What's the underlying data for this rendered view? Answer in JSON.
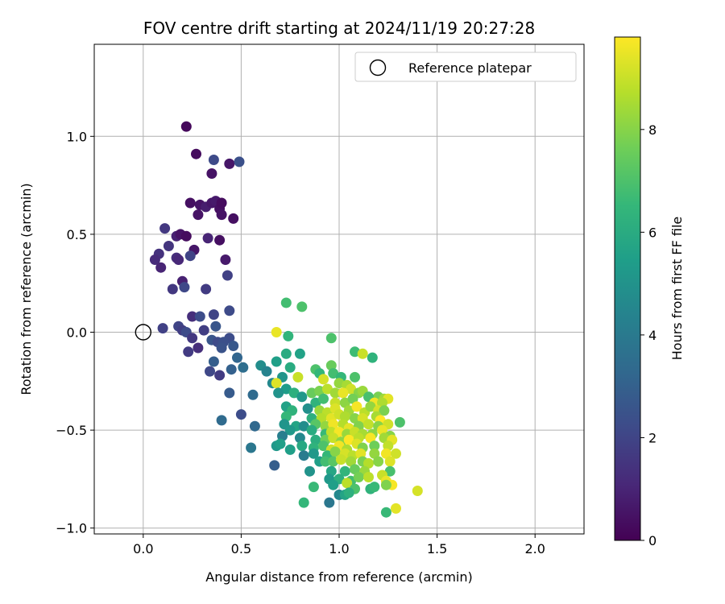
{
  "chart_data": {
    "type": "scatter",
    "title": "FOV centre drift starting at 2024/11/19 20:27:28",
    "xlabel": "Angular distance from reference (arcmin)",
    "ylabel": "Rotation from reference (arcmin)",
    "xlim": [
      -0.25,
      2.25
    ],
    "ylim": [
      -1.03,
      1.47
    ],
    "xticks": [
      0.0,
      0.5,
      1.0,
      1.5,
      2.0
    ],
    "xtick_labels": [
      "0.0",
      "0.5",
      "1.0",
      "1.5",
      "2.0"
    ],
    "yticks": [
      -1.0,
      -0.5,
      0.0,
      0.5,
      1.0
    ],
    "ytick_labels": [
      "−1.0",
      "−0.5",
      "0.0",
      "0.5",
      "1.0"
    ],
    "grid": true,
    "legend": {
      "location": "top-right",
      "label": "Reference platepar"
    },
    "reference_point": {
      "x": 0.0,
      "y": 0.0,
      "marker": "open-circle"
    },
    "colorbar": {
      "label": "Hours from first FF file",
      "colormap": "viridis",
      "range": [
        0,
        9.8
      ],
      "ticks": [
        0,
        2,
        4,
        6,
        8
      ],
      "tick_labels": [
        "0",
        "2",
        "4",
        "6",
        "8"
      ]
    },
    "colormap_stops": [
      "#440154",
      "#482878",
      "#3e4a89",
      "#31688e",
      "#26828e",
      "#1f9e89",
      "#35b779",
      "#6ece58",
      "#b5de2b",
      "#fde725"
    ],
    "series": [
      {
        "points": [
          [
            0.22,
            1.05,
            0.2
          ],
          [
            0.27,
            0.91,
            0.3
          ],
          [
            0.35,
            0.81,
            0.5
          ],
          [
            0.44,
            0.86,
            0.6
          ],
          [
            0.36,
            0.88,
            2.2
          ],
          [
            0.49,
            0.87,
            2.4
          ],
          [
            0.24,
            0.66,
            0.4
          ],
          [
            0.29,
            0.65,
            0.5
          ],
          [
            0.32,
            0.64,
            0.8
          ],
          [
            0.35,
            0.66,
            0.6
          ],
          [
            0.37,
            0.67,
            0.7
          ],
          [
            0.39,
            0.63,
            0.4
          ],
          [
            0.4,
            0.66,
            0.3
          ],
          [
            0.28,
            0.6,
            0.5
          ],
          [
            0.4,
            0.6,
            0.5
          ],
          [
            0.46,
            0.58,
            0.4
          ],
          [
            0.11,
            0.53,
            1.6
          ],
          [
            0.17,
            0.49,
            0.9
          ],
          [
            0.19,
            0.5,
            0.5
          ],
          [
            0.22,
            0.49,
            0.3
          ],
          [
            0.33,
            0.48,
            1.0
          ],
          [
            0.39,
            0.47,
            0.4
          ],
          [
            0.13,
            0.44,
            1.5
          ],
          [
            0.26,
            0.42,
            0.6
          ],
          [
            0.08,
            0.4,
            1.4
          ],
          [
            0.06,
            0.37,
            1.2
          ],
          [
            0.17,
            0.38,
            1.3
          ],
          [
            0.18,
            0.37,
            1.1
          ],
          [
            0.24,
            0.39,
            2.0
          ],
          [
            0.42,
            0.37,
            0.7
          ],
          [
            0.09,
            0.33,
            1.0
          ],
          [
            0.43,
            0.29,
            1.9
          ],
          [
            0.2,
            0.26,
            0.9
          ],
          [
            0.15,
            0.22,
            1.6
          ],
          [
            0.21,
            0.23,
            2.1
          ],
          [
            0.32,
            0.22,
            1.7
          ],
          [
            0.73,
            0.15,
            6.8
          ],
          [
            0.81,
            0.13,
            7.0
          ],
          [
            0.44,
            0.11,
            2.2
          ],
          [
            0.36,
            0.09,
            2.0
          ],
          [
            0.25,
            0.08,
            1.3
          ],
          [
            0.29,
            0.08,
            2.3
          ],
          [
            0.18,
            0.03,
            2.0
          ],
          [
            0.37,
            0.03,
            2.6
          ],
          [
            0.1,
            0.02,
            1.9
          ],
          [
            0.2,
            0.01,
            1.8
          ],
          [
            0.22,
            0.0,
            2.2
          ],
          [
            0.31,
            0.01,
            1.8
          ],
          [
            0.68,
            0.0,
            9.5
          ],
          [
            0.74,
            -0.02,
            6.4
          ],
          [
            0.96,
            -0.03,
            7.0
          ],
          [
            0.44,
            -0.03,
            2.3
          ],
          [
            0.25,
            -0.03,
            1.6
          ],
          [
            0.35,
            -0.04,
            2.6
          ],
          [
            0.38,
            -0.05,
            2.2
          ],
          [
            0.41,
            -0.05,
            2.4
          ],
          [
            0.46,
            -0.07,
            2.7
          ],
          [
            0.28,
            -0.08,
            1.3
          ],
          [
            0.4,
            -0.08,
            2.5
          ],
          [
            0.23,
            -0.1,
            1.7
          ],
          [
            1.08,
            -0.1,
            6.7
          ],
          [
            1.12,
            -0.11,
            9.0
          ],
          [
            1.17,
            -0.13,
            6.3
          ],
          [
            0.73,
            -0.11,
            6.0
          ],
          [
            0.8,
            -0.11,
            5.6
          ],
          [
            0.48,
            -0.13,
            3.2
          ],
          [
            0.68,
            -0.15,
            5.5
          ],
          [
            0.36,
            -0.15,
            2.9
          ],
          [
            0.51,
            -0.18,
            3.5
          ],
          [
            0.45,
            -0.19,
            3.0
          ],
          [
            0.6,
            -0.17,
            4.8
          ],
          [
            0.63,
            -0.2,
            4.4
          ],
          [
            0.34,
            -0.2,
            2.1
          ],
          [
            0.39,
            -0.22,
            1.7
          ],
          [
            0.75,
            -0.18,
            6.0
          ],
          [
            0.88,
            -0.19,
            7.0
          ],
          [
            0.9,
            -0.21,
            6.5
          ],
          [
            0.96,
            -0.17,
            7.5
          ],
          [
            0.97,
            -0.21,
            6.8
          ],
          [
            1.01,
            -0.23,
            6.5
          ],
          [
            1.08,
            -0.23,
            7.0
          ],
          [
            0.92,
            -0.24,
            9.2
          ],
          [
            0.79,
            -0.23,
            9.0
          ],
          [
            0.71,
            -0.23,
            5.1
          ],
          [
            0.66,
            -0.26,
            4.6
          ],
          [
            0.68,
            -0.26,
            9.3
          ],
          [
            0.73,
            -0.29,
            5.4
          ],
          [
            0.77,
            -0.31,
            6.2
          ],
          [
            0.69,
            -0.31,
            5.0
          ],
          [
            0.86,
            -0.31,
            7.5
          ],
          [
            0.9,
            -0.3,
            7.8
          ],
          [
            1.0,
            -0.26,
            8.2
          ],
          [
            1.04,
            -0.27,
            8.5
          ],
          [
            1.06,
            -0.29,
            9.1
          ],
          [
            0.94,
            -0.29,
            8.8
          ],
          [
            0.98,
            -0.31,
            8.4
          ],
          [
            1.02,
            -0.31,
            9.5
          ],
          [
            1.1,
            -0.31,
            8.0
          ],
          [
            1.12,
            -0.3,
            8.3
          ],
          [
            1.2,
            -0.33,
            7.8
          ],
          [
            1.23,
            -0.34,
            8.4
          ],
          [
            1.25,
            -0.34,
            9.4
          ],
          [
            0.44,
            -0.31,
            2.8
          ],
          [
            0.56,
            -0.32,
            3.4
          ],
          [
            0.81,
            -0.33,
            5.2
          ],
          [
            0.88,
            -0.36,
            6.3
          ],
          [
            0.92,
            -0.34,
            6.8
          ],
          [
            0.98,
            -0.36,
            9.0
          ],
          [
            1.03,
            -0.36,
            8.1
          ],
          [
            1.07,
            -0.34,
            7.7
          ],
          [
            1.15,
            -0.33,
            6.9
          ],
          [
            1.18,
            -0.36,
            9.6
          ],
          [
            1.22,
            -0.36,
            8.6
          ],
          [
            0.73,
            -0.38,
            5.6
          ],
          [
            0.76,
            -0.4,
            6.3
          ],
          [
            0.84,
            -0.39,
            4.9
          ],
          [
            0.9,
            -0.4,
            8.3
          ],
          [
            0.94,
            -0.41,
            8.8
          ],
          [
            0.98,
            -0.39,
            9.3
          ],
          [
            1.05,
            -0.4,
            8.4
          ],
          [
            1.09,
            -0.38,
            9.7
          ],
          [
            1.13,
            -0.41,
            8.8
          ],
          [
            1.16,
            -0.38,
            8.2
          ],
          [
            1.2,
            -0.4,
            9.2
          ],
          [
            1.23,
            -0.4,
            7.8
          ],
          [
            0.5,
            -0.42,
            2.3
          ],
          [
            0.73,
            -0.43,
            6.5
          ],
          [
            0.86,
            -0.44,
            6.2
          ],
          [
            0.91,
            -0.44,
            8.7
          ],
          [
            0.96,
            -0.44,
            9.4
          ],
          [
            1.0,
            -0.42,
            9.1
          ],
          [
            1.03,
            -0.43,
            8.6
          ],
          [
            1.08,
            -0.44,
            8.0
          ],
          [
            1.12,
            -0.44,
            9.2
          ],
          [
            1.19,
            -0.43,
            8.5
          ],
          [
            1.21,
            -0.45,
            9.8
          ],
          [
            0.4,
            -0.45,
            3.4
          ],
          [
            0.72,
            -0.47,
            5.1
          ],
          [
            0.78,
            -0.48,
            5.7
          ],
          [
            0.82,
            -0.48,
            4.8
          ],
          [
            0.88,
            -0.47,
            7.2
          ],
          [
            0.93,
            -0.48,
            8.2
          ],
          [
            0.97,
            -0.47,
            9.6
          ],
          [
            1.02,
            -0.47,
            8.7
          ],
          [
            1.05,
            -0.49,
            9.4
          ],
          [
            1.1,
            -0.48,
            7.9
          ],
          [
            1.15,
            -0.47,
            8.9
          ],
          [
            1.2,
            -0.48,
            8.0
          ],
          [
            1.25,
            -0.47,
            9.1
          ],
          [
            1.31,
            -0.46,
            7.0
          ],
          [
            0.57,
            -0.48,
            3.3
          ],
          [
            0.75,
            -0.5,
            5.2
          ],
          [
            0.86,
            -0.5,
            6.0
          ],
          [
            0.93,
            -0.52,
            6.6
          ],
          [
            0.96,
            -0.51,
            8.9
          ],
          [
            1.0,
            -0.51,
            9.7
          ],
          [
            1.04,
            -0.52,
            8.3
          ],
          [
            1.08,
            -0.51,
            9.0
          ],
          [
            1.12,
            -0.52,
            8.5
          ],
          [
            1.17,
            -0.52,
            8.1
          ],
          [
            1.22,
            -0.5,
            9.5
          ],
          [
            1.26,
            -0.53,
            8.0
          ],
          [
            0.71,
            -0.53,
            4.2
          ],
          [
            0.8,
            -0.54,
            4.6
          ],
          [
            0.88,
            -0.55,
            6.1
          ],
          [
            0.93,
            -0.55,
            7.6
          ],
          [
            0.97,
            -0.54,
            9.0
          ],
          [
            1.01,
            -0.56,
            8.1
          ],
          [
            1.05,
            -0.55,
            9.8
          ],
          [
            1.1,
            -0.54,
            8.8
          ],
          [
            1.16,
            -0.54,
            9.7
          ],
          [
            1.23,
            -0.54,
            8.4
          ],
          [
            1.27,
            -0.55,
            9.4
          ],
          [
            0.55,
            -0.59,
            3.9
          ],
          [
            0.68,
            -0.58,
            5.2
          ],
          [
            0.7,
            -0.57,
            5.5
          ],
          [
            0.75,
            -0.6,
            5.5
          ],
          [
            0.81,
            -0.58,
            5.9
          ],
          [
            0.87,
            -0.59,
            6.3
          ],
          [
            0.92,
            -0.58,
            7.0
          ],
          [
            0.96,
            -0.6,
            9.1
          ],
          [
            1.0,
            -0.58,
            9.6
          ],
          [
            1.04,
            -0.6,
            8.6
          ],
          [
            1.09,
            -0.57,
            9.3
          ],
          [
            1.12,
            -0.59,
            7.9
          ],
          [
            1.18,
            -0.58,
            7.6
          ],
          [
            1.25,
            -0.58,
            8.9
          ],
          [
            0.82,
            -0.63,
            4.1
          ],
          [
            0.87,
            -0.62,
            5.2
          ],
          [
            0.94,
            -0.63,
            6.5
          ],
          [
            0.98,
            -0.61,
            8.0
          ],
          [
            1.03,
            -0.62,
            9.2
          ],
          [
            1.07,
            -0.63,
            8.8
          ],
          [
            1.11,
            -0.62,
            9.4
          ],
          [
            1.18,
            -0.62,
            8.2
          ],
          [
            1.24,
            -0.62,
            9.6
          ],
          [
            1.29,
            -0.62,
            9.1
          ],
          [
            0.67,
            -0.68,
            2.9
          ],
          [
            0.9,
            -0.66,
            5.5
          ],
          [
            0.93,
            -0.66,
            6.8
          ],
          [
            0.97,
            -0.66,
            7.2
          ],
          [
            1.01,
            -0.65,
            9.0
          ],
          [
            1.06,
            -0.66,
            8.4
          ],
          [
            1.12,
            -0.66,
            7.8
          ],
          [
            1.15,
            -0.67,
            8.7
          ],
          [
            1.2,
            -0.66,
            8.0
          ],
          [
            1.26,
            -0.66,
            9.3
          ],
          [
            0.85,
            -0.71,
            5.0
          ],
          [
            0.96,
            -0.71,
            5.8
          ],
          [
            1.03,
            -0.71,
            6.4
          ],
          [
            1.08,
            -0.7,
            7.5
          ],
          [
            1.13,
            -0.71,
            8.3
          ],
          [
            1.26,
            -0.71,
            6.9
          ],
          [
            1.22,
            -0.73,
            9.0
          ],
          [
            0.95,
            -0.75,
            5.2
          ],
          [
            1.0,
            -0.75,
            6.2
          ],
          [
            1.06,
            -0.76,
            6.8
          ],
          [
            1.1,
            -0.74,
            7.7
          ],
          [
            1.15,
            -0.74,
            8.8
          ],
          [
            1.24,
            -0.76,
            9.5
          ],
          [
            1.27,
            -0.78,
            9.7
          ],
          [
            1.24,
            -0.78,
            7.9
          ],
          [
            0.87,
            -0.79,
            6.6
          ],
          [
            0.97,
            -0.78,
            5.5
          ],
          [
            1.04,
            -0.77,
            8.8
          ],
          [
            1.08,
            -0.8,
            7.0
          ],
          [
            1.16,
            -0.8,
            6.3
          ],
          [
            1.18,
            -0.79,
            6.6
          ],
          [
            1.4,
            -0.81,
            9.2
          ],
          [
            1.0,
            -0.83,
            4.6
          ],
          [
            1.03,
            -0.83,
            5.7
          ],
          [
            1.05,
            -0.82,
            6.2
          ],
          [
            0.82,
            -0.87,
            6.5
          ],
          [
            0.95,
            -0.87,
            3.9
          ],
          [
            1.24,
            -0.92,
            6.6
          ],
          [
            1.29,
            -0.9,
            9.4
          ]
        ]
      }
    ]
  }
}
